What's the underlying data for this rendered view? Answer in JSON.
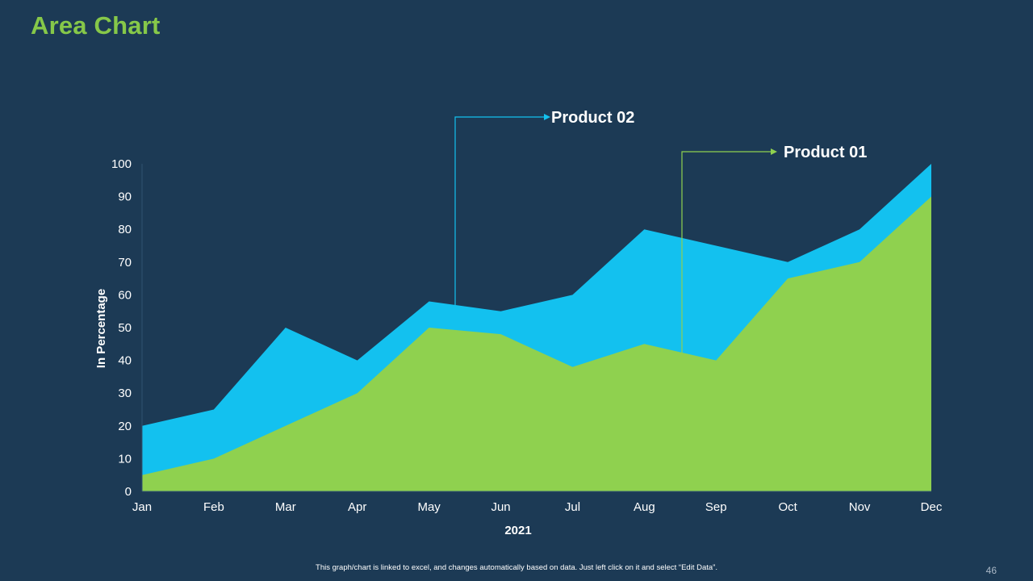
{
  "slide": {
    "title": "Area Chart",
    "footer_note": "This graph/chart is linked to excel, and changes automatically based on data. Just left click on it and select “Edit Data”.",
    "page_number": "46"
  },
  "chart_data": {
    "type": "area",
    "title": "",
    "xlabel": "2021",
    "ylabel": "In Percentage",
    "ylim": [
      0,
      100
    ],
    "yticks": [
      0,
      10,
      20,
      30,
      40,
      50,
      60,
      70,
      80,
      90,
      100
    ],
    "categories": [
      "Jan",
      "Feb",
      "Mar",
      "Apr",
      "May",
      "Jun",
      "Jul",
      "Aug",
      "Sep",
      "Oct",
      "Nov",
      "Dec"
    ],
    "grid": false,
    "series": [
      {
        "name": "Product 02",
        "color": "#13c1ef",
        "values": [
          20,
          25,
          50,
          40,
          58,
          55,
          60,
          80,
          75,
          70,
          80,
          100
        ]
      },
      {
        "name": "Product 01",
        "color": "#8fd14f",
        "values": [
          5,
          10,
          20,
          30,
          50,
          48,
          38,
          45,
          40,
          65,
          70,
          90
        ]
      }
    ],
    "annotations": [
      {
        "label": "Product 02",
        "series": "Product 02",
        "color": "#13c1ef"
      },
      {
        "label": "Product 01",
        "series": "Product 01",
        "color": "#8fd14f"
      }
    ]
  }
}
